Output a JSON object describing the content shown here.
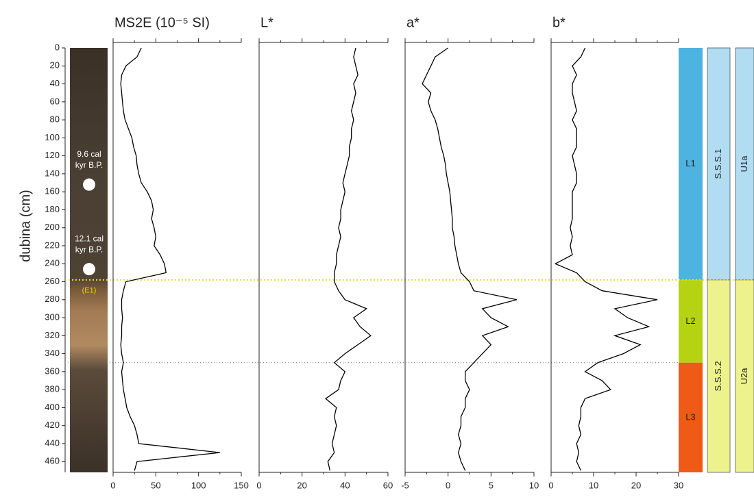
{
  "chart_data": [
    {
      "type": "line",
      "title": "MS2E (10⁻⁵ SI)",
      "ylabel": "dubina (cm)",
      "color": "#000000",
      "xlim": [
        0,
        150
      ],
      "xticks": [
        0,
        50,
        100,
        150
      ],
      "ylim": [
        0,
        472
      ],
      "yticks": [
        0,
        20,
        40,
        60,
        80,
        100,
        120,
        140,
        160,
        180,
        200,
        220,
        240,
        260,
        280,
        300,
        320,
        340,
        360,
        380,
        400,
        420,
        440,
        460
      ],
      "depth": [
        0,
        10,
        20,
        30,
        40,
        50,
        60,
        70,
        80,
        90,
        100,
        110,
        120,
        130,
        140,
        150,
        160,
        170,
        180,
        190,
        200,
        210,
        220,
        230,
        240,
        250,
        260,
        270,
        280,
        290,
        300,
        310,
        320,
        330,
        340,
        350,
        360,
        370,
        380,
        390,
        400,
        410,
        420,
        430,
        440,
        450,
        460,
        470
      ],
      "values": [
        33,
        28,
        15,
        10,
        9,
        10,
        11,
        12,
        14,
        18,
        22,
        24,
        27,
        28,
        30,
        33,
        40,
        45,
        47,
        45,
        48,
        50,
        48,
        55,
        60,
        62,
        15,
        12,
        10,
        10,
        11,
        10,
        10,
        9,
        10,
        12,
        10,
        11,
        12,
        14,
        16,
        20,
        25,
        28,
        30,
        125,
        28,
        25
      ]
    },
    {
      "type": "line",
      "title": "L*",
      "color": "#000000",
      "xlim": [
        0,
        60
      ],
      "xticks": [
        0,
        20,
        40,
        60
      ],
      "ylim": [
        0,
        472
      ],
      "depth": [
        0,
        10,
        20,
        30,
        40,
        50,
        60,
        70,
        80,
        90,
        100,
        110,
        120,
        130,
        140,
        150,
        160,
        170,
        180,
        190,
        200,
        210,
        220,
        230,
        240,
        250,
        260,
        270,
        280,
        290,
        300,
        310,
        320,
        330,
        340,
        350,
        360,
        370,
        380,
        390,
        400,
        410,
        420,
        430,
        440,
        450,
        460,
        470
      ],
      "values": [
        45,
        44,
        45,
        46,
        44,
        45,
        44,
        43,
        44,
        43,
        43,
        42,
        42,
        41,
        40,
        39,
        40,
        39,
        38,
        38,
        37,
        38,
        37,
        36,
        36,
        35,
        35,
        37,
        40,
        50,
        44,
        47,
        52,
        46,
        40,
        35,
        40,
        38,
        37,
        31,
        36,
        35,
        36,
        35,
        34,
        35,
        32,
        33
      ]
    },
    {
      "type": "line",
      "title": "a*",
      "color": "#000000",
      "xlim": [
        -5,
        10
      ],
      "xticks": [
        -5,
        0,
        5,
        10
      ],
      "ylim": [
        0,
        472
      ],
      "depth": [
        0,
        10,
        20,
        30,
        40,
        50,
        60,
        70,
        80,
        90,
        100,
        110,
        120,
        130,
        140,
        150,
        160,
        170,
        180,
        190,
        200,
        210,
        220,
        230,
        240,
        250,
        260,
        270,
        280,
        290,
        300,
        310,
        320,
        330,
        340,
        350,
        360,
        370,
        380,
        390,
        400,
        410,
        420,
        430,
        440,
        450,
        460,
        470
      ],
      "values": [
        0,
        -1.5,
        -2,
        -2.5,
        -3,
        -2,
        -2.3,
        -2,
        -1.5,
        -1.2,
        -1,
        -0.8,
        -0.5,
        -0.3,
        -0.2,
        0,
        0.2,
        0.3,
        0.4,
        0.5,
        0.5,
        0.7,
        0.8,
        1,
        1.2,
        1.5,
        2.5,
        3,
        8,
        4,
        5,
        7,
        4,
        5,
        4,
        3,
        2,
        2,
        2.5,
        2,
        2,
        1.5,
        1.5,
        1.2,
        1.5,
        1.2,
        1.5,
        2
      ]
    },
    {
      "type": "line",
      "title": "b*",
      "color": "#000000",
      "xlim": [
        0,
        30
      ],
      "xticks": [
        0,
        10,
        20,
        30
      ],
      "ylim": [
        0,
        472
      ],
      "depth": [
        0,
        10,
        20,
        30,
        40,
        50,
        60,
        70,
        80,
        90,
        100,
        110,
        120,
        130,
        140,
        150,
        160,
        170,
        180,
        190,
        200,
        210,
        220,
        230,
        240,
        250,
        260,
        270,
        280,
        290,
        300,
        310,
        320,
        330,
        340,
        350,
        360,
        370,
        380,
        390,
        400,
        410,
        420,
        430,
        440,
        450,
        460,
        470
      ],
      "values": [
        8,
        7,
        5,
        6,
        5,
        5,
        5.5,
        6,
        5,
        6,
        6,
        6,
        5,
        5.5,
        6,
        6,
        5,
        5,
        5,
        5,
        4.5,
        5,
        4.5,
        5,
        1,
        6,
        8,
        12,
        25,
        15,
        18,
        23,
        15,
        21,
        17,
        11,
        8,
        12,
        14,
        8,
        7,
        7,
        6.5,
        7,
        6,
        6.5,
        6,
        7
      ]
    }
  ],
  "core": {
    "dates": [
      {
        "label": [
          "9.6 cal",
          "kyr B.P."
        ],
        "depth": 152
      },
      {
        "label": [
          "12.1 cal",
          "kyr B.P."
        ],
        "depth": 246
      }
    ],
    "event": {
      "label": "(E1)",
      "depth": 270
    }
  },
  "zones": [
    {
      "columns": [
        {
          "label": "L1",
          "color": "#4db3e0",
          "top": 0,
          "bottom": 258
        },
        {
          "label": "L2",
          "color": "#b6d313",
          "top": 258,
          "bottom": 350
        },
        {
          "label": "L3",
          "color": "#ef5a17",
          "top": 350,
          "bottom": 472
        }
      ]
    },
    {
      "columns": [
        {
          "label": "S.S.S.1",
          "color": "#b1dcf2",
          "top": 0,
          "bottom": 258
        },
        {
          "label": "S.S.S.2",
          "color": "#eef28c",
          "top": 258,
          "bottom": 472
        }
      ]
    },
    {
      "columns": [
        {
          "label": "U1a",
          "color": "#b1dcf2",
          "top": 0,
          "bottom": 258
        },
        {
          "label": "U2a",
          "color": "#eef28c",
          "top": 258,
          "bottom": 472
        }
      ]
    }
  ]
}
